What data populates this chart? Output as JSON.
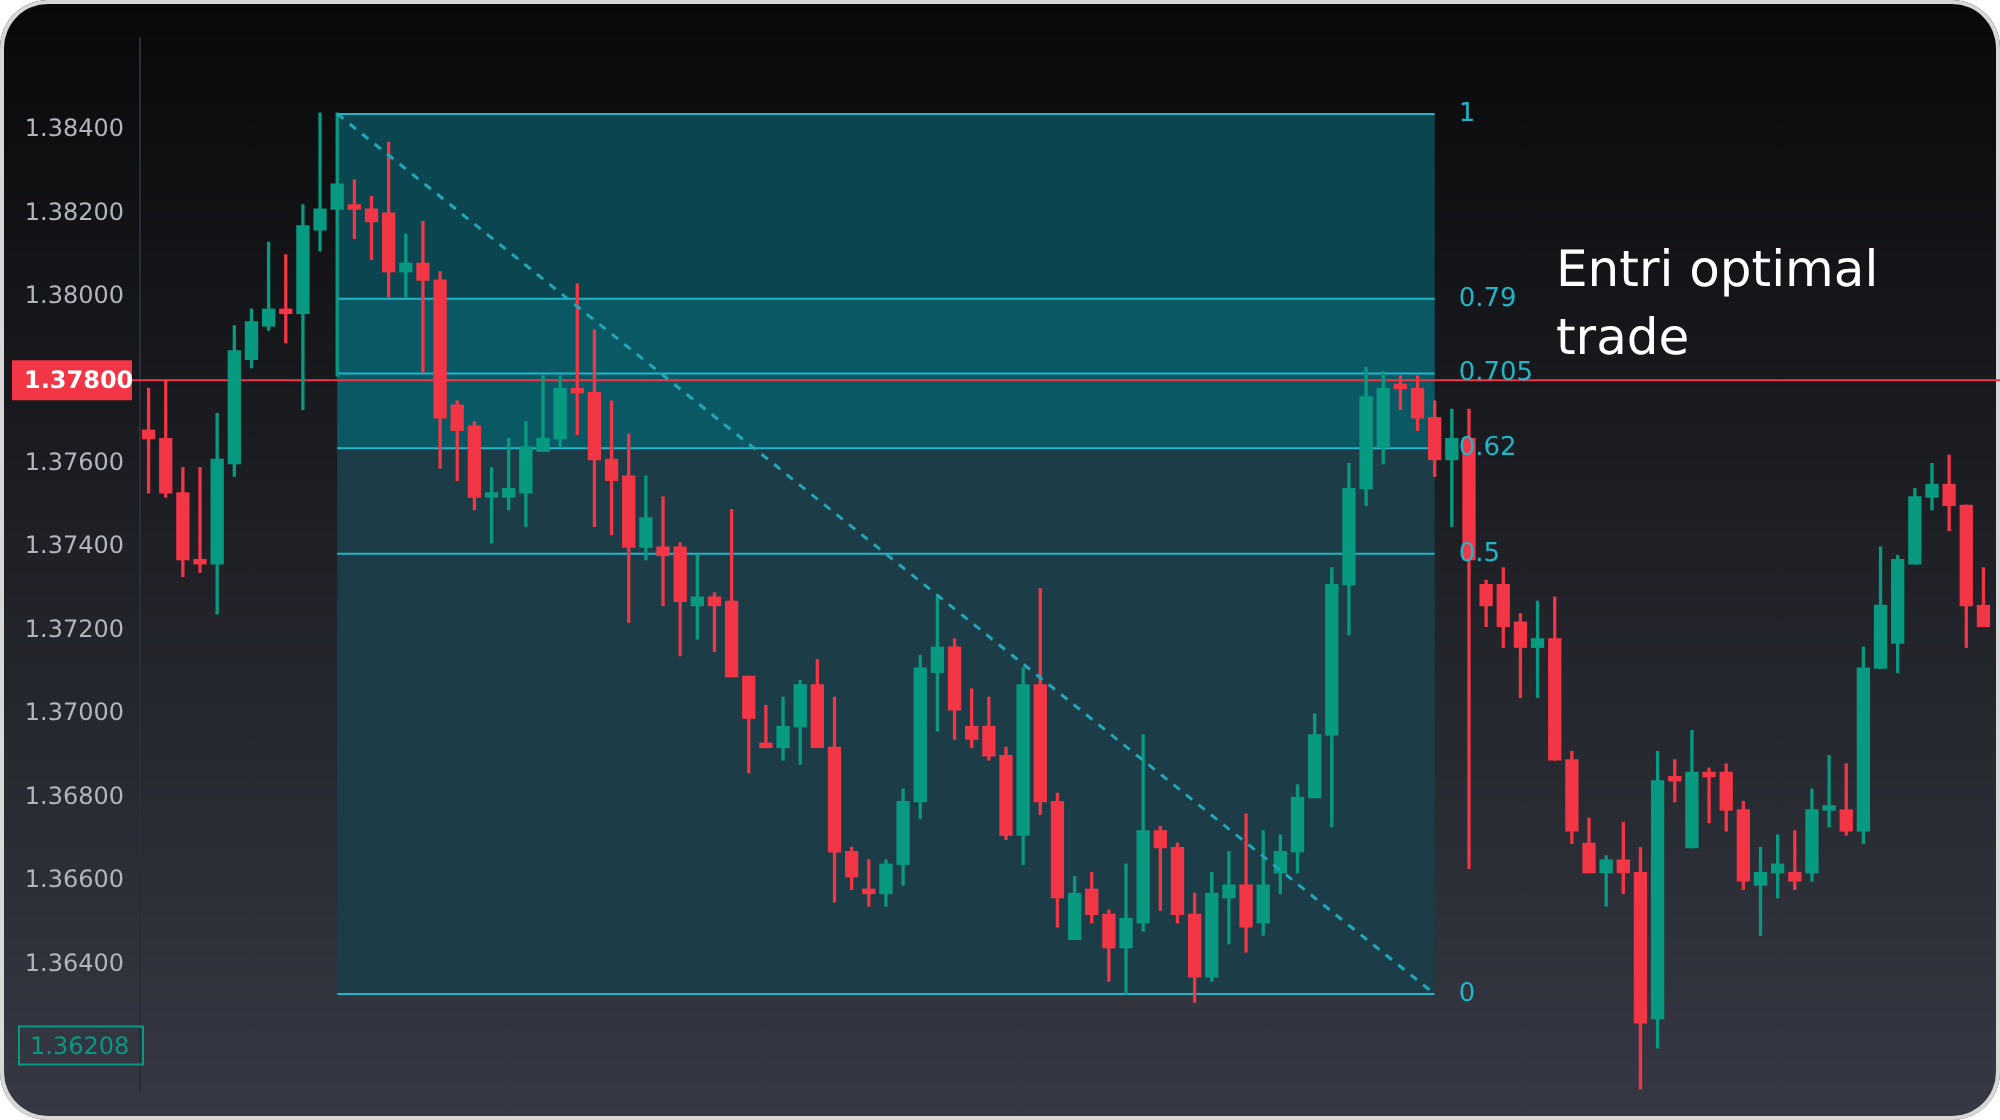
{
  "chart_data": {
    "type": "candlestick",
    "categories": [
      null,
      null,
      null,
      null,
      null,
      null,
      null,
      null,
      null,
      null,
      null,
      null,
      null,
      null,
      null,
      null,
      null,
      null,
      null,
      null,
      null,
      null,
      null,
      null,
      null,
      null,
      null,
      null,
      null,
      null,
      null,
      null,
      null,
      null,
      null,
      null,
      null,
      null,
      null,
      null,
      null,
      null,
      null,
      null,
      null,
      null,
      null,
      null,
      null,
      null,
      null,
      null,
      null,
      null,
      null,
      null,
      null,
      null,
      null,
      null,
      null,
      null,
      null,
      null,
      null,
      null,
      null,
      null,
      null,
      null,
      null,
      null,
      null,
      null,
      null,
      null,
      null,
      null,
      null,
      null,
      null,
      null,
      null,
      null,
      null,
      null,
      null,
      null,
      null,
      null,
      null,
      null,
      null,
      null,
      null,
      null,
      null,
      null,
      null,
      null,
      null,
      null,
      null,
      null,
      null,
      null,
      null,
      null
    ],
    "ohlc": [
      [
        1.3768,
        1.3778,
        1.3753,
        1.3766
      ],
      [
        1.3766,
        1.378,
        1.3752,
        1.3753
      ],
      [
        1.3753,
        1.3759,
        1.3733,
        1.3737
      ],
      [
        1.3737,
        1.3759,
        1.3734,
        1.3736
      ],
      [
        1.3736,
        1.3772,
        1.3724,
        1.3761
      ],
      [
        1.376,
        1.3793,
        1.3757,
        1.3787
      ],
      [
        1.3785,
        1.3797,
        1.3783,
        1.3794
      ],
      [
        1.3793,
        1.3813,
        1.3792,
        1.3797
      ],
      [
        1.3797,
        1.381,
        1.3789,
        1.3796
      ],
      [
        1.3796,
        1.3822,
        1.3773,
        1.3817
      ],
      [
        1.3816,
        1.3844,
        1.3811,
        1.3821
      ],
      [
        1.3821,
        1.3844,
        1.3781,
        1.3827
      ],
      [
        1.3822,
        1.3828,
        1.3814,
        1.3821
      ],
      [
        1.3821,
        1.3824,
        1.3809,
        1.3818
      ],
      [
        1.382,
        1.3837,
        1.38,
        1.3806
      ],
      [
        1.3806,
        1.3815,
        1.38,
        1.3808
      ],
      [
        1.3808,
        1.3818,
        1.3782,
        1.3804
      ],
      [
        1.3804,
        1.3806,
        1.3759,
        1.3771
      ],
      [
        1.3774,
        1.3775,
        1.3756,
        1.3768
      ],
      [
        1.3769,
        1.377,
        1.3749,
        1.3752
      ],
      [
        1.3752,
        1.3759,
        1.3741,
        1.3753
      ],
      [
        1.3752,
        1.3766,
        1.3749,
        1.3754
      ],
      [
        1.3753,
        1.377,
        1.3745,
        1.3764
      ],
      [
        1.3763,
        1.3781,
        1.3763,
        1.3766
      ],
      [
        1.3766,
        1.3781,
        1.3764,
        1.3778
      ],
      [
        1.3778,
        1.3803,
        1.3767,
        1.3777
      ],
      [
        1.3777,
        1.3792,
        1.3745,
        1.3761
      ],
      [
        1.3761,
        1.3775,
        1.3743,
        1.3756
      ],
      [
        1.3757,
        1.3767,
        1.3722,
        1.374
      ],
      [
        1.374,
        1.3757,
        1.3737,
        1.3747
      ],
      [
        1.374,
        1.3752,
        1.3726,
        1.3738
      ],
      [
        1.374,
        1.3741,
        1.3714,
        1.3727
      ],
      [
        1.3726,
        1.3738,
        1.3718,
        1.3728
      ],
      [
        1.3728,
        1.3729,
        1.3715,
        1.3726
      ],
      [
        1.3727,
        1.3749,
        1.3709,
        1.3709
      ],
      [
        1.3709,
        1.3709,
        1.3686,
        1.3699
      ],
      [
        1.3693,
        1.3702,
        1.3692,
        1.3692
      ],
      [
        1.3692,
        1.3704,
        1.3689,
        1.3697
      ],
      [
        1.3697,
        1.3708,
        1.3688,
        1.3707
      ],
      [
        1.3707,
        1.3713,
        1.3692,
        1.3692
      ],
      [
        1.3692,
        1.3704,
        1.3655,
        1.3667
      ],
      [
        1.3667,
        1.3668,
        1.3658,
        1.3661
      ],
      [
        1.3658,
        1.3665,
        1.3654,
        1.3657
      ],
      [
        1.3657,
        1.3665,
        1.3654,
        1.3664
      ],
      [
        1.3664,
        1.3682,
        1.3659,
        1.3679
      ],
      [
        1.3679,
        1.3714,
        1.3675,
        1.3711
      ],
      [
        1.371,
        1.3728,
        1.3696,
        1.3716
      ],
      [
        1.3716,
        1.3718,
        1.3694,
        1.3701
      ],
      [
        1.3697,
        1.3706,
        1.3692,
        1.3694
      ],
      [
        1.3697,
        1.3704,
        1.3689,
        1.369
      ],
      [
        1.369,
        1.3692,
        1.367,
        1.3671
      ],
      [
        1.3671,
        1.3711,
        1.3664,
        1.3707
      ],
      [
        1.3707,
        1.373,
        1.3676,
        1.3679
      ],
      [
        1.3679,
        1.3681,
        1.3649,
        1.3656
      ],
      [
        1.3646,
        1.3661,
        1.3646,
        1.3657
      ],
      [
        1.3658,
        1.3662,
        1.365,
        1.3652
      ],
      [
        1.3652,
        1.3653,
        1.3636,
        1.3644
      ],
      [
        1.3644,
        1.3664,
        1.3633,
        1.3651
      ],
      [
        1.365,
        1.3695,
        1.3648,
        1.3672
      ],
      [
        1.3672,
        1.3673,
        1.3653,
        1.3668
      ],
      [
        1.3668,
        1.3669,
        1.365,
        1.3652
      ],
      [
        1.3652,
        1.3657,
        1.3631,
        1.3637
      ],
      [
        1.3637,
        1.3662,
        1.3636,
        1.3657
      ],
      [
        1.3656,
        1.3667,
        1.3645,
        1.3659
      ],
      [
        1.3659,
        1.3676,
        1.3643,
        1.3649
      ],
      [
        1.365,
        1.3672,
        1.3647,
        1.3659
      ],
      [
        1.3662,
        1.3671,
        1.3657,
        1.3667
      ],
      [
        1.3667,
        1.3683,
        1.3662,
        1.368
      ],
      [
        1.368,
        1.37,
        1.368,
        1.3695
      ],
      [
        1.3695,
        1.3735,
        1.3673,
        1.3731
      ],
      [
        1.3731,
        1.376,
        1.3719,
        1.3754
      ],
      [
        1.3754,
        1.3783,
        1.375,
        1.3776
      ],
      [
        1.3764,
        1.3782,
        1.376,
        1.3778
      ],
      [
        1.3779,
        1.3781,
        1.3773,
        1.3778
      ],
      [
        1.3778,
        1.3781,
        1.3768,
        1.3771
      ],
      [
        1.3771,
        1.3775,
        1.3757,
        1.3761
      ],
      [
        1.3761,
        1.3773,
        1.3745,
        1.3766
      ],
      [
        1.3766,
        1.3773,
        1.3663,
        1.3737
      ],
      [
        1.3731,
        1.3732,
        1.3721,
        1.3726
      ],
      [
        1.3731,
        1.3735,
        1.3716,
        1.3721
      ],
      [
        1.3722,
        1.3724,
        1.3704,
        1.3716
      ],
      [
        1.3716,
        1.3727,
        1.3704,
        1.3718
      ],
      [
        1.3718,
        1.3728,
        1.3689,
        1.3689
      ],
      [
        1.3689,
        1.3691,
        1.3669,
        1.3672
      ],
      [
        1.3669,
        1.3675,
        1.3662,
        1.3662
      ],
      [
        1.3662,
        1.3666,
        1.3654,
        1.3665
      ],
      [
        1.3665,
        1.3674,
        1.3657,
        1.3662
      ],
      [
        1.3662,
        1.3668,
        1.3609,
        1.3626
      ],
      [
        1.3627,
        1.3691,
        1.362,
        1.3684
      ],
      [
        1.3685,
        1.3689,
        1.3679,
        1.3684
      ],
      [
        1.3668,
        1.3696,
        1.3668,
        1.3686
      ],
      [
        1.3686,
        1.3687,
        1.3674,
        1.3685
      ],
      [
        1.3686,
        1.3688,
        1.3672,
        1.3677
      ],
      [
        1.3677,
        1.3679,
        1.3658,
        1.366
      ],
      [
        1.3659,
        1.3668,
        1.3647,
        1.3662
      ],
      [
        1.3662,
        1.3671,
        1.3656,
        1.3664
      ],
      [
        1.3662,
        1.3672,
        1.3658,
        1.366
      ],
      [
        1.3662,
        1.3682,
        1.366,
        1.3677
      ],
      [
        1.3677,
        1.369,
        1.3673,
        1.3678
      ],
      [
        1.3677,
        1.3688,
        1.3671,
        1.3672
      ],
      [
        1.3672,
        1.3716,
        1.3669,
        1.3711
      ],
      [
        1.3711,
        1.374,
        1.3711,
        1.3726
      ],
      [
        1.3717,
        1.3738,
        1.371,
        1.3737
      ],
      [
        1.3736,
        1.3754,
        1.3736,
        1.3752
      ],
      [
        1.3752,
        1.376,
        1.3749,
        1.3755
      ],
      [
        1.3755,
        1.3762,
        1.3744,
        1.375
      ],
      [
        1.375,
        1.375,
        1.3716,
        1.3726
      ],
      [
        1.3726,
        1.3735,
        1.3721,
        1.3721
      ]
    ],
    "colors": [
      "#f23645",
      "#f23645",
      "#f23645",
      "#f23645",
      "#089981",
      "#089981",
      "#089981",
      "#089981",
      "#f23645",
      "#089981",
      "#089981",
      "#089981",
      "#f23645",
      "#f23645",
      "#f23645",
      "#089981",
      "#f23645",
      "#f23645",
      "#f23645",
      "#f23645",
      "#089981",
      "#089981",
      "#089981",
      "#089981",
      "#089981",
      "#f23645",
      "#f23645",
      "#f23645",
      "#f23645",
      "#089981",
      "#f23645",
      "#f23645",
      "#089981",
      "#f23645",
      "#f23645",
      "#f23645",
      "#f23645",
      "#089981",
      "#089981",
      "#f23645",
      "#f23645",
      "#f23645",
      "#f23645",
      "#089981",
      "#089981",
      "#089981",
      "#089981",
      "#f23645",
      "#f23645",
      "#f23645",
      "#f23645",
      "#089981",
      "#f23645",
      "#f23645",
      "#089981",
      "#f23645",
      "#f23645",
      "#089981",
      "#089981",
      "#f23645",
      "#f23645",
      "#f23645",
      "#089981",
      "#089981",
      "#f23645",
      "#089981",
      "#089981",
      "#089981",
      "#089981",
      "#089981",
      "#089981",
      "#089981",
      "#089981",
      "#f23645",
      "#f23645",
      "#f23645",
      "#089981",
      "#f23645",
      "#f23645",
      "#f23645",
      "#f23645",
      "#089981",
      "#f23645",
      "#f23645",
      "#f23645",
      "#089981",
      "#f23645",
      "#f23645",
      "#089981",
      "#f23645",
      "#089981",
      "#f23645",
      "#f23645",
      "#f23645",
      "#089981",
      "#089981",
      "#f23645",
      "#089981",
      "#089981",
      "#f23645",
      "#089981",
      "#089981",
      "#089981",
      "#089981",
      "#089981",
      "#f23645",
      "#f23645",
      "#f23645"
    ],
    "series": [
      {
        "type": "line",
        "color": "#22a6b8",
        "line_style": "dashed",
        "values": [
          null,
          null,
          null,
          null,
          null,
          null,
          null,
          null,
          null,
          null,
          null,
          1.38438,
          null,
          null,
          null,
          null,
          null,
          null,
          null,
          null,
          null,
          null,
          null,
          null,
          null,
          null,
          null,
          null,
          null,
          null,
          null,
          null,
          null,
          null,
          null,
          null,
          null,
          null,
          null,
          null,
          null,
          null,
          null,
          null,
          null,
          null,
          null,
          null,
          null,
          null,
          null,
          null,
          null,
          null,
          null,
          null,
          null,
          null,
          null,
          null,
          null,
          null,
          null,
          null,
          null,
          null,
          null,
          null,
          null,
          null,
          null,
          null,
          null,
          null,
          null,
          1.36329,
          null,
          null,
          null,
          null,
          null,
          null,
          null,
          null,
          null,
          null,
          null,
          null,
          null,
          null,
          null,
          null,
          null,
          null,
          null,
          null,
          null,
          null,
          null,
          null,
          null,
          null,
          null,
          null,
          null,
          null,
          null,
          null
        ]
      }
    ],
    "ylim": [
      1.361,
      1.3862
    ],
    "yticks": [
      {
        "value": 1.364,
        "label": "1.36400"
      },
      {
        "value": 1.366,
        "label": "1.36600"
      },
      {
        "value": 1.368,
        "label": "1.36800"
      },
      {
        "value": 1.37,
        "label": "1.37000"
      },
      {
        "value": 1.372,
        "label": "1.37200"
      },
      {
        "value": 1.374,
        "label": "1.37400"
      },
      {
        "value": 1.376,
        "label": "1.37600"
      },
      {
        "value": 1.38,
        "label": "1.38000"
      },
      {
        "value": 1.382,
        "label": "1.38200"
      },
      {
        "value": 1.384,
        "label": "1.38400"
      }
    ],
    "tick_labels": "y",
    "grid": false,
    "ref_lines": [
      {
        "axis": "y",
        "value": 1.378,
        "label": "1.37800",
        "color": "#f23645"
      },
      {
        "axis": "y",
        "value": 1.38438,
        "color": "#22b5c8"
      },
      {
        "axis": "y",
        "value": 1.37995,
        "color": "#22b5c8"
      },
      {
        "axis": "y",
        "value": 1.37816,
        "color": "#22b5c8"
      },
      {
        "axis": "y",
        "value": 1.37637,
        "color": "#22b5c8"
      },
      {
        "axis": "y",
        "value": 1.37384,
        "color": "#22b5c8"
      },
      {
        "axis": "y",
        "value": 1.36329,
        "color": "#22b5c8"
      }
    ],
    "bands": [
      {
        "axis": "y",
        "from": 1.37995,
        "to": 1.38438,
        "color": "#0a4550"
      },
      {
        "axis": "y",
        "from": 1.37816,
        "to": 1.37995,
        "color": "#0b5865"
      },
      {
        "axis": "y",
        "from": 1.37637,
        "to": 1.37816,
        "color": "#0b5865"
      },
      {
        "axis": "y",
        "from": 1.36329,
        "to": 1.37637,
        "color": "#1c3d47"
      }
    ],
    "annotations": [
      "Entri optimal trade",
      "1.36208",
      "1",
      "0.79",
      "0.705",
      "0.62",
      "0.5",
      "0"
    ]
  }
}
